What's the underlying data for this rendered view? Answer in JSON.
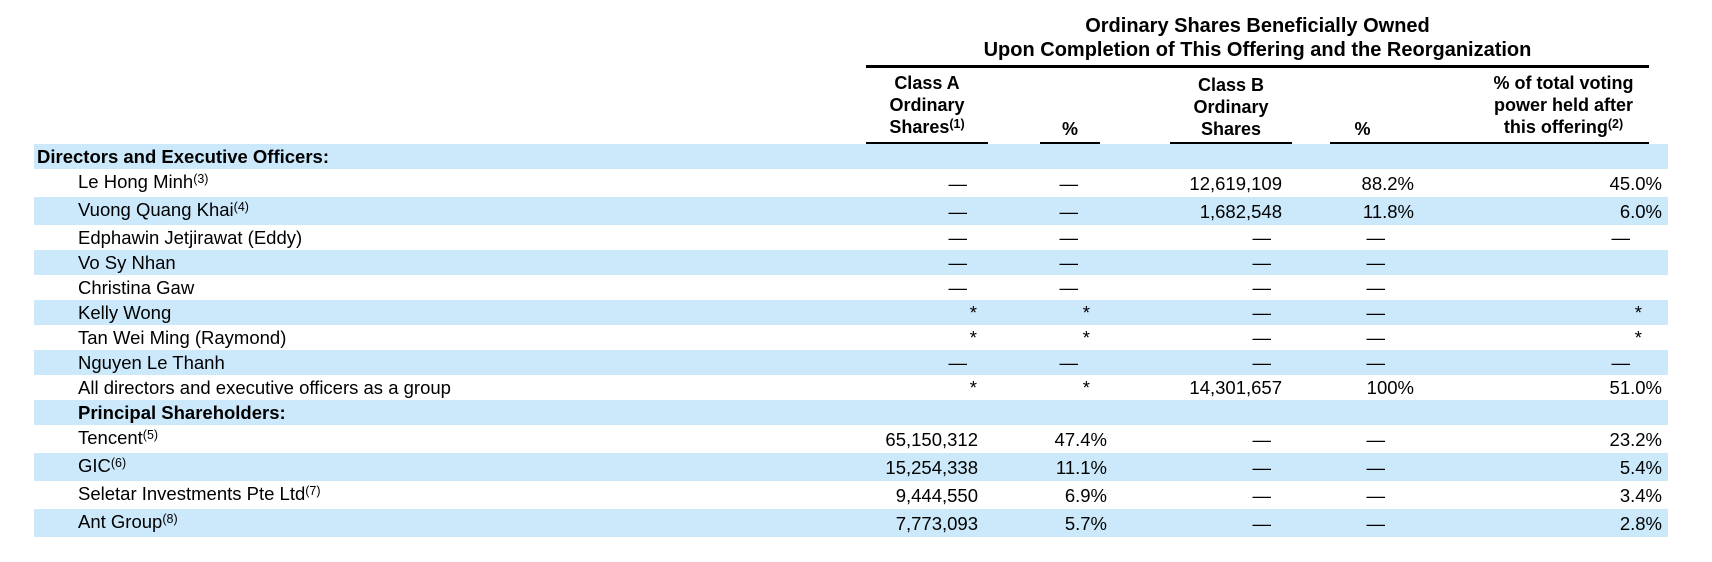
{
  "colors": {
    "stripe": "#cce9fb",
    "rule": "#000000",
    "text": "#000000"
  },
  "table": {
    "group_header": {
      "line1": "Ordinary Shares Beneficially Owned",
      "line2": "Upon Completion of This Offering and the Reorganization"
    },
    "columns": [
      {
        "key": "class-a-shares",
        "lines": [
          "Class A",
          "Ordinary",
          "Shares"
        ],
        "sup": "(1)"
      },
      {
        "key": "class-a-pct",
        "lines": [
          "%"
        ],
        "sup": ""
      },
      {
        "key": "class-b-shares",
        "lines": [
          "Class B",
          "Ordinary",
          "Shares"
        ],
        "sup": ""
      },
      {
        "key": "class-b-pct",
        "lines": [
          "%"
        ],
        "sup": ""
      },
      {
        "key": "voting-power",
        "lines": [
          "% of total voting",
          "power held after",
          "this offering"
        ],
        "sup": "(2)"
      }
    ],
    "rows": [
      {
        "style": "section",
        "indent": 0,
        "label": "Directors and Executive Officers:",
        "sup": "",
        "cells": [
          "",
          "",
          "",
          "",
          ""
        ]
      },
      {
        "style": "name",
        "indent": 1,
        "label": "Le Hong Minh",
        "sup": "(3)",
        "cells": [
          "—",
          "—",
          "12,619,109",
          "88.2%",
          "45.0%"
        ]
      },
      {
        "style": "name",
        "indent": 1,
        "label": "Vuong Quang Khai",
        "sup": "(4)",
        "cells": [
          "—",
          "—",
          "1,682,548",
          "11.8%",
          "6.0%"
        ]
      },
      {
        "style": "name",
        "indent": 1,
        "label": "Edphawin Jetjirawat (Eddy)",
        "sup": "",
        "cells": [
          "—",
          "—",
          "—",
          "—",
          "—"
        ]
      },
      {
        "style": "name",
        "indent": 1,
        "label": "Vo Sy Nhan",
        "sup": "",
        "cells": [
          "—",
          "—",
          "—",
          "—",
          ""
        ]
      },
      {
        "style": "name",
        "indent": 1,
        "label": "Christina Gaw",
        "sup": "",
        "cells": [
          "—",
          "—",
          "—",
          "—",
          ""
        ]
      },
      {
        "style": "name",
        "indent": 1,
        "label": "Kelly Wong",
        "sup": "",
        "cells": [
          "*",
          "*",
          "—",
          "—",
          "*"
        ]
      },
      {
        "style": "name",
        "indent": 1,
        "label": "Tan Wei Ming (Raymond)",
        "sup": "",
        "cells": [
          "*",
          "*",
          "—",
          "—",
          "*"
        ]
      },
      {
        "style": "name",
        "indent": 1,
        "label": "Nguyen Le Thanh",
        "sup": "",
        "cells": [
          "—",
          "—",
          "—",
          "—",
          "—"
        ]
      },
      {
        "style": "name",
        "indent": 1,
        "label": "All directors and executive officers as a group",
        "sup": "",
        "cells": [
          "*",
          "*",
          "14,301,657",
          "100%",
          "51.0%"
        ]
      },
      {
        "style": "section",
        "indent": 1,
        "label": "Principal Shareholders:",
        "sup": "",
        "cells": [
          "",
          "",
          "",
          "",
          ""
        ]
      },
      {
        "style": "name",
        "indent": 1,
        "label": "Tencent",
        "sup": "(5)",
        "cells": [
          "65,150,312",
          "47.4%",
          "—",
          "—",
          "23.2%"
        ]
      },
      {
        "style": "name",
        "indent": 1,
        "label": "GIC",
        "sup": "(6)",
        "cells": [
          "15,254,338",
          "11.1%",
          "—",
          "—",
          "5.4%"
        ]
      },
      {
        "style": "name",
        "indent": 1,
        "label": "Seletar Investments Pte Ltd",
        "sup": "(7)",
        "cells": [
          "9,444,550",
          "6.9%",
          "—",
          "—",
          "3.4%"
        ]
      },
      {
        "style": "name",
        "indent": 1,
        "label": "Ant Group",
        "sup": "(8)",
        "cells": [
          "7,773,093",
          "5.7%",
          "—",
          "—",
          "2.8%"
        ]
      }
    ]
  }
}
